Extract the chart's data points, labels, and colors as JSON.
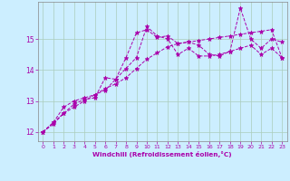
{
  "xlabel": "Windchill (Refroidissement éolien,°C)",
  "background_color": "#cceeff",
  "grid_color": "#aaccbb",
  "line_color": "#aa00aa",
  "xlim": [
    -0.5,
    23.5
  ],
  "ylim": [
    11.7,
    16.2
  ],
  "yticks": [
    12,
    13,
    14,
    15
  ],
  "xticks": [
    0,
    1,
    2,
    3,
    4,
    5,
    6,
    7,
    8,
    9,
    10,
    11,
    12,
    13,
    14,
    15,
    16,
    17,
    18,
    19,
    20,
    21,
    22,
    23
  ],
  "xtick_labels": [
    "0",
    "1",
    "2",
    "3",
    "4",
    "5",
    "6",
    "7",
    "8",
    "9",
    "10",
    "11",
    "12",
    "13",
    "14",
    "15",
    "16",
    "17",
    "18",
    "19",
    "20",
    "21",
    "22",
    "23"
  ],
  "series": [
    [
      12.0,
      12.3,
      12.6,
      12.8,
      13.0,
      13.2,
      13.4,
      13.55,
      13.75,
      14.05,
      14.35,
      14.55,
      14.75,
      14.85,
      14.9,
      14.95,
      15.0,
      15.05,
      15.1,
      15.15,
      15.2,
      15.25,
      15.3,
      14.4
    ],
    [
      12.0,
      12.3,
      12.8,
      13.0,
      13.1,
      13.2,
      13.35,
      13.7,
      14.4,
      15.2,
      15.3,
      15.05,
      15.1,
      14.85,
      14.9,
      14.8,
      14.5,
      14.45,
      14.6,
      16.0,
      15.0,
      14.7,
      15.0,
      14.9
    ],
    [
      12.0,
      12.25,
      12.6,
      12.9,
      13.05,
      13.1,
      13.75,
      13.7,
      14.05,
      14.4,
      15.4,
      15.1,
      15.0,
      14.5,
      14.7,
      14.45,
      14.45,
      14.5,
      14.6,
      14.7,
      14.8,
      14.5,
      14.7,
      14.4
    ]
  ]
}
